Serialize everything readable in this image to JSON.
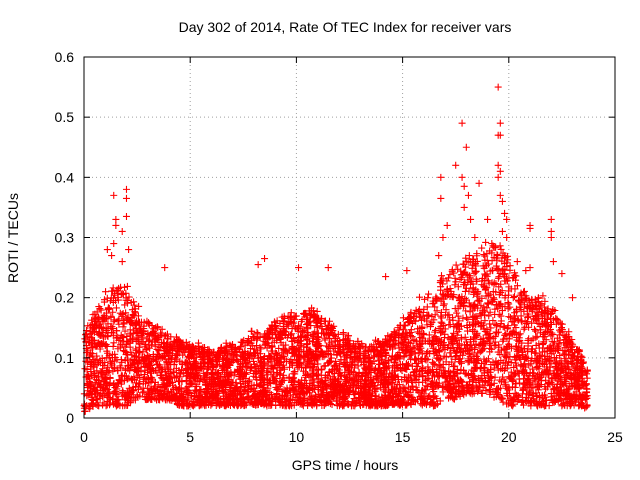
{
  "chart_data": {
    "type": "scatter",
    "title": "Day 302 of 2014, Rate Of TEC Index for receiver vars",
    "xlabel": "GPS time / hours",
    "ylabel": "ROTI / TECUs",
    "xlim": [
      0,
      25
    ],
    "ylim": [
      0,
      0.6
    ],
    "x_ticks": [
      0,
      5,
      10,
      15,
      20,
      25
    ],
    "y_ticks": [
      0,
      0.1,
      0.2,
      0.3,
      0.4,
      0.5,
      0.6
    ],
    "x_tick_labels": [
      "0",
      "5",
      "10",
      "15",
      "20",
      "25"
    ],
    "y_tick_labels": [
      "0",
      "0.1",
      "0.2",
      "0.3",
      "0.4",
      "0.5",
      "0.6"
    ],
    "grid": true,
    "marker": "+",
    "series_color": "#ff0000",
    "density_envelope": {
      "hours": [
        0,
        0.5,
        1,
        1.5,
        2,
        2.5,
        3,
        3.5,
        4,
        4.5,
        5,
        5.5,
        6,
        6.5,
        7,
        7.5,
        8,
        8.5,
        9,
        9.5,
        10,
        10.5,
        11,
        11.5,
        12,
        12.5,
        13,
        13.5,
        14,
        14.5,
        15,
        15.5,
        16,
        16.5,
        17,
        17.5,
        18,
        18.5,
        19,
        19.5,
        20,
        20.5,
        21,
        21.5,
        22,
        22.5,
        23,
        23.5,
        23.7
      ],
      "typical_max": [
        0.15,
        0.17,
        0.2,
        0.22,
        0.22,
        0.18,
        0.16,
        0.15,
        0.14,
        0.13,
        0.12,
        0.12,
        0.11,
        0.12,
        0.12,
        0.13,
        0.14,
        0.14,
        0.16,
        0.17,
        0.17,
        0.18,
        0.17,
        0.16,
        0.14,
        0.13,
        0.12,
        0.12,
        0.13,
        0.14,
        0.16,
        0.18,
        0.2,
        0.22,
        0.24,
        0.25,
        0.26,
        0.27,
        0.28,
        0.3,
        0.26,
        0.22,
        0.2,
        0.2,
        0.19,
        0.16,
        0.13,
        0.1,
        0.08
      ],
      "typical_min": [
        0.01,
        0.02,
        0.02,
        0.02,
        0.02,
        0.03,
        0.03,
        0.03,
        0.03,
        0.02,
        0.02,
        0.02,
        0.02,
        0.02,
        0.02,
        0.02,
        0.02,
        0.02,
        0.02,
        0.02,
        0.02,
        0.02,
        0.02,
        0.02,
        0.02,
        0.02,
        0.02,
        0.02,
        0.02,
        0.02,
        0.02,
        0.02,
        0.02,
        0.02,
        0.03,
        0.03,
        0.04,
        0.04,
        0.04,
        0.03,
        0.02,
        0.02,
        0.02,
        0.02,
        0.02,
        0.02,
        0.02,
        0.02,
        0.01
      ]
    },
    "outliers": [
      {
        "x": 1.4,
        "y": 0.37
      },
      {
        "x": 1.5,
        "y": 0.33
      },
      {
        "x": 1.5,
        "y": 0.32
      },
      {
        "x": 1.4,
        "y": 0.29
      },
      {
        "x": 1.1,
        "y": 0.28
      },
      {
        "x": 1.3,
        "y": 0.27
      },
      {
        "x": 2.0,
        "y": 0.38
      },
      {
        "x": 2.0,
        "y": 0.365
      },
      {
        "x": 2.0,
        "y": 0.335
      },
      {
        "x": 1.8,
        "y": 0.31
      },
      {
        "x": 2.1,
        "y": 0.28
      },
      {
        "x": 1.8,
        "y": 0.26
      },
      {
        "x": 3.8,
        "y": 0.25
      },
      {
        "x": 8.2,
        "y": 0.255
      },
      {
        "x": 8.5,
        "y": 0.265
      },
      {
        "x": 10.1,
        "y": 0.25
      },
      {
        "x": 11.5,
        "y": 0.25
      },
      {
        "x": 14.2,
        "y": 0.235
      },
      {
        "x": 15.2,
        "y": 0.245
      },
      {
        "x": 16.8,
        "y": 0.4
      },
      {
        "x": 16.8,
        "y": 0.365
      },
      {
        "x": 17.1,
        "y": 0.32
      },
      {
        "x": 16.9,
        "y": 0.3
      },
      {
        "x": 16.7,
        "y": 0.27
      },
      {
        "x": 17.5,
        "y": 0.42
      },
      {
        "x": 17.8,
        "y": 0.49
      },
      {
        "x": 17.8,
        "y": 0.4
      },
      {
        "x": 17.9,
        "y": 0.385
      },
      {
        "x": 18.0,
        "y": 0.45
      },
      {
        "x": 18.1,
        "y": 0.37
      },
      {
        "x": 17.9,
        "y": 0.35
      },
      {
        "x": 18.2,
        "y": 0.33
      },
      {
        "x": 18.4,
        "y": 0.3
      },
      {
        "x": 18.6,
        "y": 0.39
      },
      {
        "x": 19.0,
        "y": 0.33
      },
      {
        "x": 19.5,
        "y": 0.55
      },
      {
        "x": 19.6,
        "y": 0.49
      },
      {
        "x": 19.5,
        "y": 0.47
      },
      {
        "x": 19.6,
        "y": 0.47
      },
      {
        "x": 19.5,
        "y": 0.42
      },
      {
        "x": 19.6,
        "y": 0.41
      },
      {
        "x": 19.5,
        "y": 0.4
      },
      {
        "x": 19.6,
        "y": 0.37
      },
      {
        "x": 19.7,
        "y": 0.36
      },
      {
        "x": 19.8,
        "y": 0.34
      },
      {
        "x": 19.9,
        "y": 0.33
      },
      {
        "x": 19.7,
        "y": 0.31
      },
      {
        "x": 19.2,
        "y": 0.29
      },
      {
        "x": 19.9,
        "y": 0.3
      },
      {
        "x": 20.4,
        "y": 0.26
      },
      {
        "x": 21.0,
        "y": 0.32
      },
      {
        "x": 21.0,
        "y": 0.315
      },
      {
        "x": 21.0,
        "y": 0.25
      },
      {
        "x": 20.8,
        "y": 0.245
      },
      {
        "x": 22.0,
        "y": 0.33
      },
      {
        "x": 22.0,
        "y": 0.31
      },
      {
        "x": 22.0,
        "y": 0.3
      },
      {
        "x": 22.1,
        "y": 0.26
      },
      {
        "x": 22.5,
        "y": 0.24
      },
      {
        "x": 23.0,
        "y": 0.2
      }
    ]
  }
}
